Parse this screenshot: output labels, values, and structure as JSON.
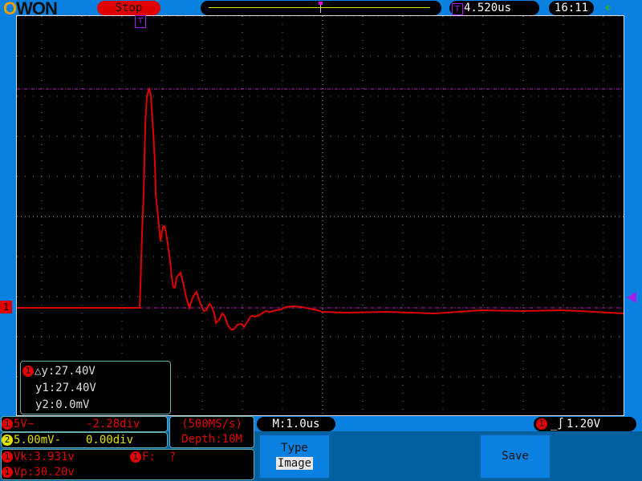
{
  "header": {
    "brand": "OWON",
    "run_state": "Stop",
    "trigger_time": "4.520us",
    "clock": "16:11",
    "usb_icon": "usb-icon"
  },
  "colors": {
    "ch1": "#e00000",
    "ch2": "#e0e000",
    "trigger": "#a020f0",
    "frame": "#0a80e0"
  },
  "cursor": {
    "ch": "1",
    "dy": "△y:27.40V",
    "y1": "y1:27.40V",
    "y2": "y2:0.0mV"
  },
  "channels": [
    {
      "id": "1",
      "scale": "5V~",
      "offset": "-2.28div"
    },
    {
      "id": "2",
      "scale": "5.00mV-",
      "offset": "0.00div"
    }
  ],
  "acq": {
    "rate": "(500MS/s)",
    "depth": "Depth:10M"
  },
  "timebase": "M:1.0us",
  "trigger": {
    "ch": "1",
    "level": "1.20V",
    "edge_icon": "rising-edge-icon"
  },
  "measure": {
    "vk_ch": "1",
    "vk": "Vk:3.931v",
    "f_ch": "1",
    "f": "F:  ?",
    "vp_ch": "1",
    "vp": "Vp:30.20v"
  },
  "menu": {
    "type_label": "Type",
    "type_value": "Image",
    "save_label": "Save"
  },
  "markers": {
    "ch1_label": "1",
    "trigger_label": "T"
  }
}
